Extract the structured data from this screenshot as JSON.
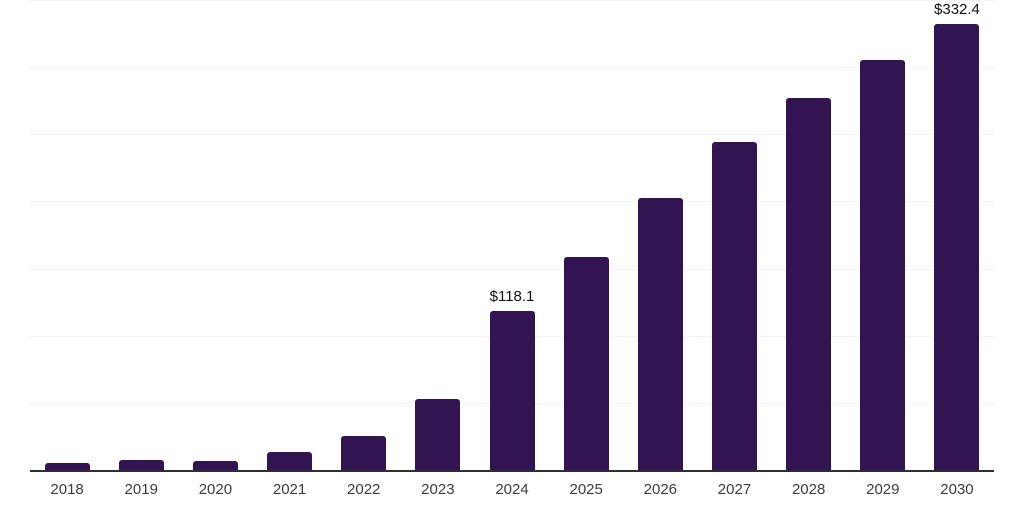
{
  "chart_data": {
    "type": "bar",
    "title": "",
    "xlabel": "",
    "ylabel": "",
    "categories": [
      "2018",
      "2019",
      "2020",
      "2021",
      "2022",
      "2023",
      "2024",
      "2025",
      "2026",
      "2027",
      "2028",
      "2029",
      "2030"
    ],
    "values": [
      5.0,
      7.4,
      6.7,
      13.2,
      25.1,
      52.8,
      118.1,
      158.9,
      202.2,
      244.1,
      277.1,
      305.2,
      332.4
    ],
    "data_labels": [
      "",
      "",
      "",
      "",
      "",
      "",
      "$118.1",
      "",
      "",
      "",
      "",
      "",
      "$332.4"
    ],
    "ylim": [
      0,
      350
    ],
    "gridline_step": 50,
    "grid": "horizontal-only",
    "legend": "none",
    "y_axis_labels_visible": false
  },
  "colors": {
    "bar_fill": "#331452",
    "gridline": "#f2f2f2",
    "axis_line": "#2e2e2e",
    "tick_label": "#3d3d3d",
    "data_label": "#111111",
    "background": "#ffffff"
  }
}
